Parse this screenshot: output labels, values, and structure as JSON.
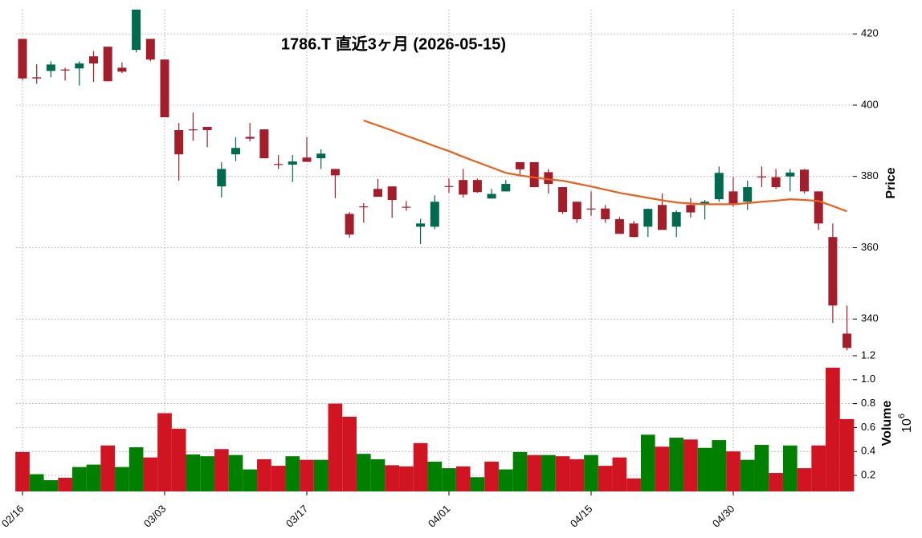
{
  "chart_data": {
    "type": "candlestick",
    "title": "1786.T 直近3ヶ月 (2026-05-15)",
    "categories": [
      "02/16",
      null,
      null,
      null,
      null,
      null,
      null,
      null,
      null,
      null,
      "03/03",
      null,
      null,
      null,
      null,
      null,
      null,
      null,
      null,
      null,
      "03/17",
      null,
      null,
      null,
      null,
      null,
      null,
      null,
      null,
      null,
      "04/01",
      null,
      null,
      null,
      null,
      null,
      null,
      null,
      null,
      null,
      "04/15",
      null,
      null,
      null,
      null,
      null,
      null,
      null,
      null,
      null,
      "04/30",
      null,
      null,
      null,
      null,
      null,
      null,
      null,
      null
    ],
    "open": [
      418.6,
      407.8,
      409.6,
      410,
      410.3,
      413.7,
      416.4,
      410.5,
      415.5,
      418.6,
      412.8,
      393,
      393.2,
      393.9,
      377.2,
      386.2,
      391.1,
      393.2,
      383.5,
      383.3,
      385.3,
      385.1,
      382.1,
      369.5,
      371.6,
      376.5,
      377.2,
      371.5,
      365.9,
      365.9,
      377.3,
      379,
      379,
      373.8,
      375.8,
      384,
      384,
      381.2,
      377,
      372.9,
      371,
      371,
      368,
      366.8,
      365.9,
      372,
      365.9,
      372,
      372,
      373.6,
      375.8,
      372.9,
      380,
      379.8,
      380,
      381.9,
      375.8,
      363,
      335.9
    ],
    "high": [
      418.6,
      411.5,
      412.3,
      410.5,
      412.3,
      415.2,
      416.4,
      412,
      426.8,
      418.6,
      412.8,
      395,
      397.9,
      393.9,
      384,
      391,
      395,
      393.2,
      386,
      386,
      391,
      387.6,
      382.1,
      370,
      372.5,
      379.3,
      377.2,
      373.1,
      368.1,
      374.7,
      379.4,
      382.1,
      379.4,
      376.5,
      379,
      384,
      384,
      382.1,
      377,
      372.9,
      375.8,
      372,
      368.6,
      367.5,
      371,
      375.2,
      370.5,
      373.9,
      373.4,
      382.8,
      379.8,
      378.8,
      382.8,
      382.1,
      382.1,
      382.1,
      375.8,
      366.8,
      343.8
    ],
    "low": [
      407,
      406,
      407.8,
      406.9,
      405.5,
      406.5,
      406.7,
      409,
      414.8,
      412.3,
      396.6,
      378.8,
      390,
      388.2,
      374.1,
      384.3,
      389.8,
      385.1,
      382.1,
      378.4,
      384.1,
      382.1,
      373.9,
      362.8,
      367,
      374.3,
      368.4,
      370.4,
      361,
      365.2,
      375.4,
      374.1,
      375.4,
      373.8,
      375.8,
      380.3,
      377,
      375.2,
      369.5,
      367,
      369,
      367,
      363.9,
      363,
      363,
      365,
      363,
      368.4,
      367.9,
      372.9,
      371.5,
      370.6,
      377,
      376.5,
      375.8,
      375.2,
      365,
      338.9,
      331.2
    ],
    "close": [
      407.5,
      407.5,
      411.4,
      409.8,
      411.7,
      411.7,
      406.7,
      409.4,
      426.8,
      412.8,
      396.6,
      386.2,
      393,
      393,
      382.1,
      388,
      390.6,
      385.1,
      383.3,
      384.2,
      384.1,
      386.4,
      380.3,
      363.7,
      371.5,
      374.3,
      373.4,
      371.3,
      366.8,
      372.9,
      377.2,
      374.9,
      375.6,
      375.1,
      377.9,
      382,
      377,
      377.9,
      370,
      368,
      370.8,
      368,
      363.9,
      363,
      370.9,
      365,
      370,
      369.9,
      372.9,
      381,
      372,
      377,
      379.8,
      377,
      381.1,
      375.8,
      366.8,
      343.8,
      331.9
    ],
    "colors": {
      "up": "#006a4e",
      "down": "#a31d2b"
    },
    "ma": {
      "color": "#e8601c",
      "values": [
        null,
        null,
        null,
        null,
        null,
        null,
        null,
        null,
        null,
        null,
        null,
        null,
        null,
        null,
        null,
        null,
        null,
        null,
        null,
        null,
        null,
        null,
        null,
        null,
        395.7,
        394.3,
        392.9,
        391.4,
        390,
        388.5,
        387.1,
        385.5,
        384,
        382.5,
        381,
        380.3,
        379.7,
        379.2,
        378.8,
        378,
        377.2,
        376.3,
        375.4,
        374.7,
        374,
        373.3,
        372.7,
        372.4,
        372.2,
        372.2,
        372.2,
        372.5,
        372.9,
        373.2,
        373.6,
        373.4,
        373.1,
        371.7,
        370.2
      ]
    },
    "ylabel": "Price",
    "ylim": [
      329.7,
      426.8
    ],
    "yticks": [
      340,
      360,
      380,
      400,
      420
    ],
    "grid": true,
    "volume": {
      "ylabel": "Volume",
      "scale": {
        "base": "10",
        "exponent": "6"
      },
      "colors": {
        "up": "#007f00",
        "down": "#d11422"
      },
      "values": [
        0.395,
        0.21,
        0.16,
        0.18,
        0.27,
        0.29,
        0.45,
        0.27,
        0.435,
        0.35,
        0.72,
        0.59,
        0.375,
        0.36,
        0.42,
        0.37,
        0.25,
        0.335,
        0.28,
        0.36,
        0.33,
        0.33,
        0.8,
        0.69,
        0.38,
        0.335,
        0.285,
        0.275,
        0.47,
        0.315,
        0.26,
        0.275,
        0.185,
        0.315,
        0.25,
        0.395,
        0.37,
        0.37,
        0.36,
        0.335,
        0.37,
        0.28,
        0.35,
        0.175,
        0.54,
        0.44,
        0.515,
        0.5,
        0.43,
        0.495,
        0.4,
        0.33,
        0.455,
        0.22,
        0.45,
        0.26,
        0.45,
        1.1,
        0.67
      ],
      "ylim": [
        0.066,
        1.2
      ],
      "yticks": [
        0.2,
        0.4,
        0.6,
        0.8,
        {
          "value": 1,
          "label": "1.0"
        },
        1.2
      ]
    }
  }
}
